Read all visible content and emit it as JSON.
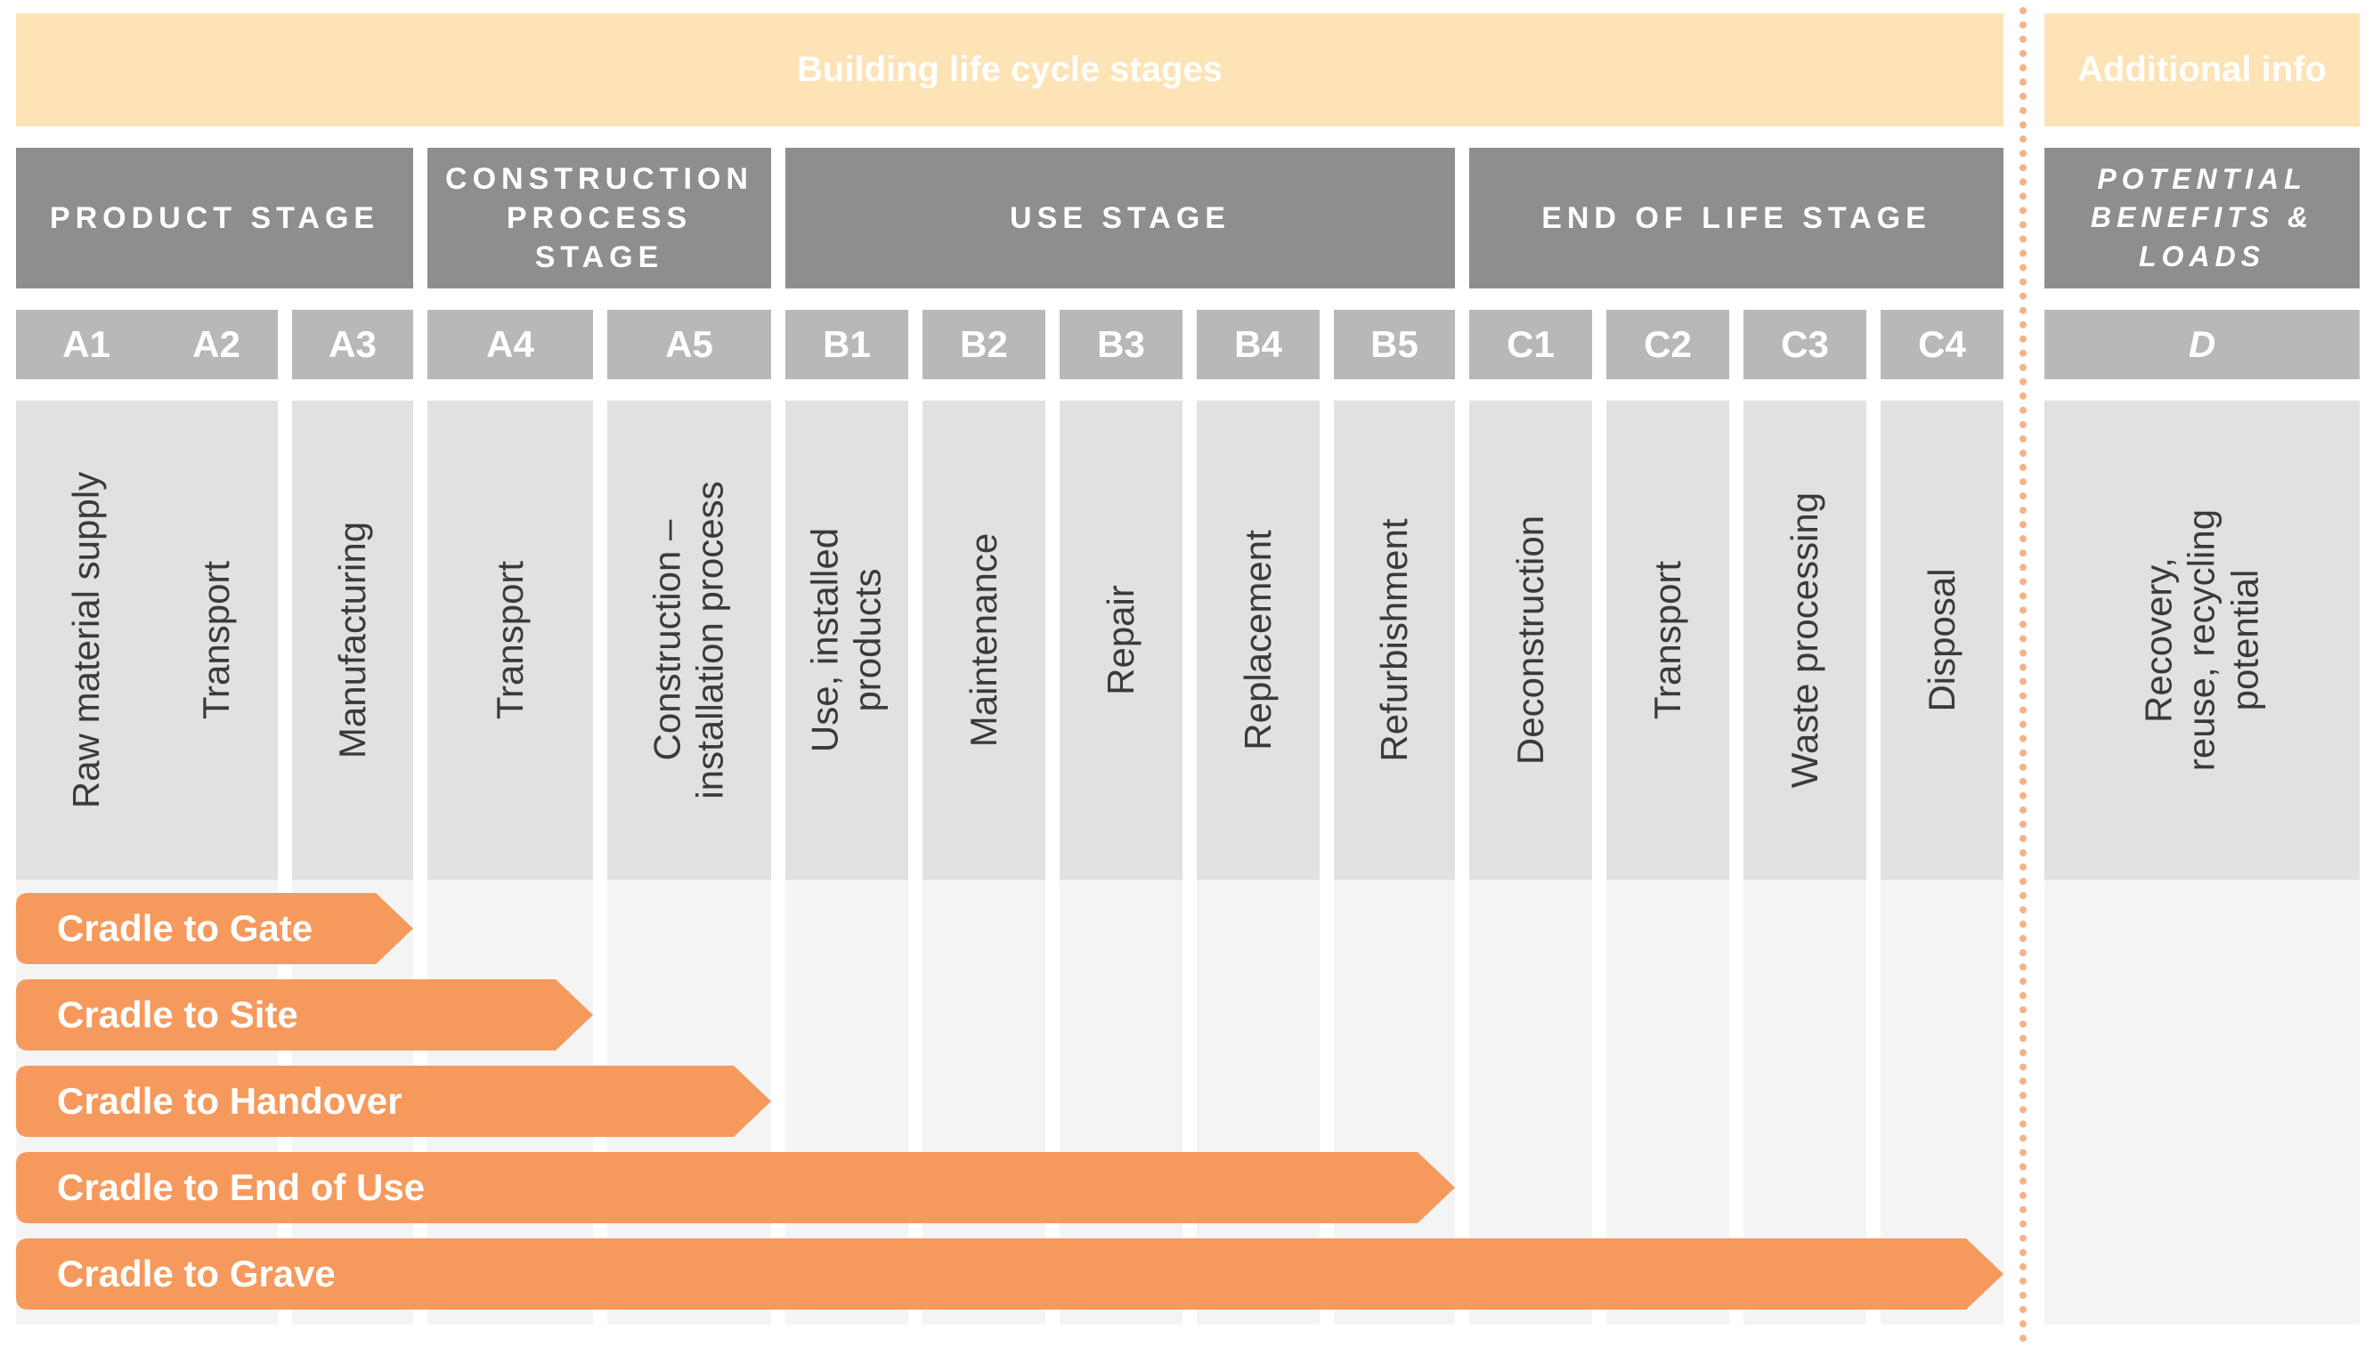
{
  "header": {
    "life_cycle": "Building life cycle stages",
    "additional": "Additional info"
  },
  "stages": [
    {
      "label": "PRODUCT STAGE"
    },
    {
      "label": "CONSTRUCTION PROCESS STAGE"
    },
    {
      "label": "USE STAGE"
    },
    {
      "label": "END OF LIFE STAGE"
    },
    {
      "label": "POTENTIAL BENEFITS & LOADS"
    }
  ],
  "modules": [
    {
      "code": "A1",
      "label": "Raw material supply"
    },
    {
      "code": "A2",
      "label": "Transport"
    },
    {
      "code": "A3",
      "label": "Manufacturing"
    },
    {
      "code": "A4",
      "label": "Transport"
    },
    {
      "code": "A5",
      "label": "Construction – installation process"
    },
    {
      "code": "B1",
      "label": "Use, installed products"
    },
    {
      "code": "B2",
      "label": "Maintenance"
    },
    {
      "code": "B3",
      "label": "Repair"
    },
    {
      "code": "B4",
      "label": "Replacement"
    },
    {
      "code": "B5",
      "label": "Refurbishment"
    },
    {
      "code": "C1",
      "label": "Deconstruction"
    },
    {
      "code": "C2",
      "label": "Transport"
    },
    {
      "code": "C3",
      "label": "Waste processing"
    },
    {
      "code": "C4",
      "label": "Disposal"
    },
    {
      "code": "D",
      "label": "Recovery, reuse, recycling potential"
    }
  ],
  "scopes": [
    {
      "label": "Cradle to Gate",
      "ends_at": "A3"
    },
    {
      "label": "Cradle to Site",
      "ends_at": "A4"
    },
    {
      "label": "Cradle to Handover",
      "ends_at": "A5"
    },
    {
      "label": "Cradle to End of Use",
      "ends_at": "B5"
    },
    {
      "label": "Cradle to Grave",
      "ends_at": "C4"
    }
  ],
  "colors": {
    "banner": "#fde3b5",
    "stage_header": "#8d8e90",
    "module_code": "#b7b8ba",
    "module_body": "#e1e1e1",
    "scope_arrow": "#f6995c",
    "divider": "#f2b38a"
  }
}
